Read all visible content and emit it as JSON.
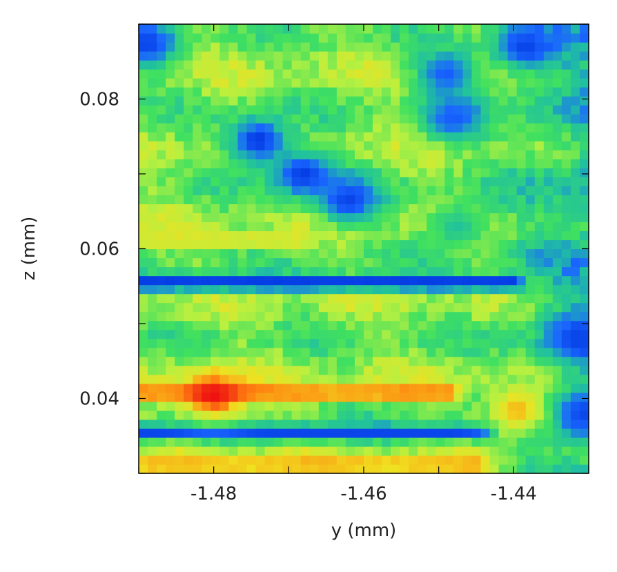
{
  "chart_data": {
    "type": "heatmap",
    "title": "",
    "xlabel": "y (mm)",
    "ylabel": "z (mm)",
    "xlim": [
      -1.49,
      -1.43
    ],
    "ylim": [
      0.03,
      0.09
    ],
    "x_ticks": [
      -1.48,
      -1.46,
      -1.44
    ],
    "x_tick_labels": [
      "-1.48",
      "-1.46",
      "-1.44"
    ],
    "y_ticks": [
      0.04,
      0.06,
      0.08
    ],
    "y_tick_labels": [
      "0.04",
      "0.06",
      "0.08"
    ],
    "grid": false,
    "legend": "none",
    "colormap": [
      "#0033dd",
      "#1a66ff",
      "#20c0a0",
      "#40e060",
      "#b8f040",
      "#f0e020",
      "#ff8010",
      "#ee1010"
    ],
    "value_range": [
      0,
      1
    ],
    "grid_size": [
      50,
      50
    ],
    "features": {
      "horizontal_bands": [
        {
          "z": 0.0555,
          "y_start": -1.49,
          "y_end": -1.4375,
          "value": 0.0
        },
        {
          "z": 0.0355,
          "y_start": -1.49,
          "y_end": -1.4415,
          "value": 0.05
        },
        {
          "z": 0.0408,
          "y_start": -1.49,
          "y_end": -1.446,
          "value": 0.9
        },
        {
          "z": 0.0312,
          "y_start": -1.49,
          "y_end": -1.442,
          "value": 0.82
        },
        {
          "z": 0.0612,
          "y_start": -1.49,
          "y_end": -1.466,
          "value": 0.68
        }
      ],
      "blobs": [
        {
          "y": -1.474,
          "z": 0.0745,
          "value": 0.02
        },
        {
          "y": -1.468,
          "z": 0.07,
          "value": 0.03
        },
        {
          "y": -1.462,
          "z": 0.0665,
          "value": 0.05
        },
        {
          "y": -1.489,
          "z": 0.0875,
          "value": 0.05
        },
        {
          "y": -1.449,
          "z": 0.0835,
          "value": 0.12
        },
        {
          "y": -1.448,
          "z": 0.0775,
          "value": 0.12
        },
        {
          "y": -1.4385,
          "z": 0.087,
          "value": 0.05
        },
        {
          "y": -1.4475,
          "z": 0.063,
          "value": 0.3
        },
        {
          "y": -1.4315,
          "z": 0.048,
          "value": 0.05
        },
        {
          "y": -1.431,
          "z": 0.038,
          "value": 0.05
        },
        {
          "y": -1.4395,
          "z": 0.0385,
          "value": 0.78
        },
        {
          "y": -1.48,
          "z": 0.0405,
          "value": 1.0
        }
      ]
    }
  }
}
